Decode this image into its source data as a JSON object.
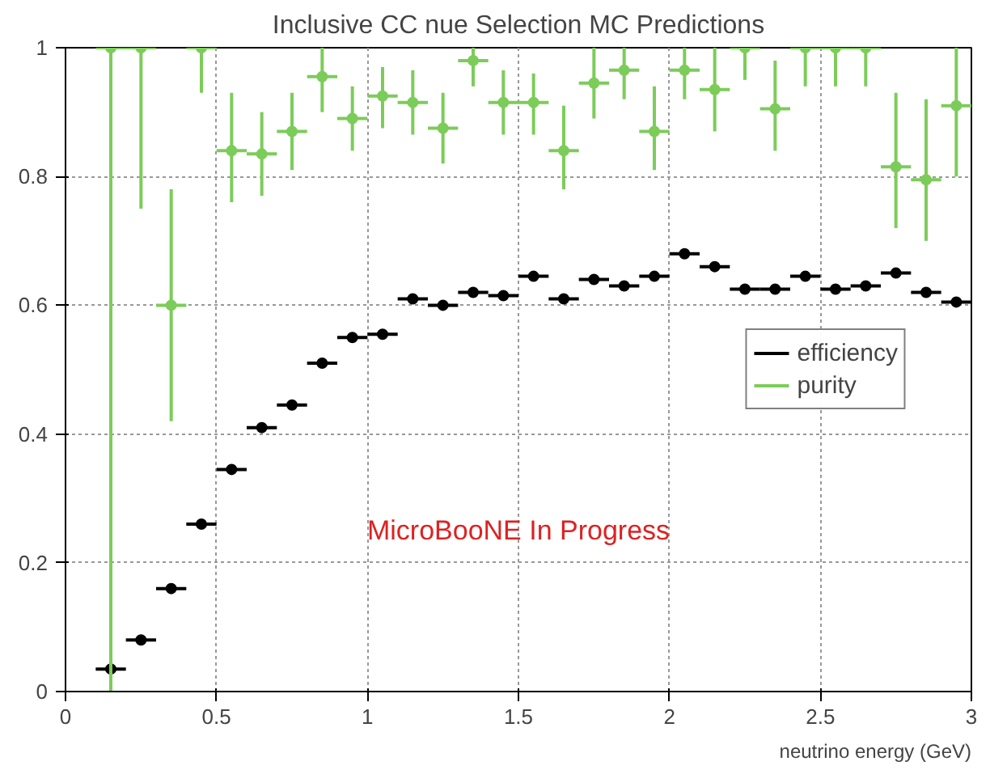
{
  "chart_data": {
    "type": "scatter",
    "title": "Inclusive CC nue Selection MC Predictions",
    "xlabel": "neutrino energy (GeV)",
    "x": [
      0.15,
      0.25,
      0.35,
      0.45,
      0.55,
      0.65,
      0.75,
      0.85,
      0.95,
      1.05,
      1.15,
      1.25,
      1.35,
      1.45,
      1.55,
      1.65,
      1.75,
      1.85,
      1.95,
      2.05,
      2.15,
      2.25,
      2.35,
      2.45,
      2.55,
      2.65,
      2.75,
      2.85,
      2.95
    ],
    "series": [
      {
        "name": "efficiency",
        "color": "#000000",
        "values": [
          0.035,
          0.08,
          0.16,
          0.26,
          0.345,
          0.41,
          0.445,
          0.51,
          0.55,
          0.555,
          0.61,
          0.6,
          0.62,
          0.615,
          0.645,
          0.61,
          0.64,
          0.63,
          0.645,
          0.68,
          0.66,
          0.625,
          0.625,
          0.645,
          0.625,
          0.63,
          0.65,
          0.62,
          0.605
        ],
        "xerrors": [
          0.05,
          0.05,
          0.05,
          0.05,
          0.05,
          0.05,
          0.05,
          0.05,
          0.05,
          0.05,
          0.05,
          0.05,
          0.05,
          0.05,
          0.05,
          0.05,
          0.05,
          0.05,
          0.05,
          0.05,
          0.05,
          0.05,
          0.05,
          0.05,
          0.05,
          0.05,
          0.05,
          0.05,
          0.05
        ],
        "errors": [
          null,
          null,
          null,
          null,
          null,
          null,
          null,
          null,
          null,
          null,
          null,
          null,
          null,
          null,
          null,
          null,
          null,
          null,
          null,
          null,
          null,
          null,
          null,
          null,
          null,
          null,
          null,
          null,
          null
        ]
      },
      {
        "name": "purity",
        "color": "#7ccc5a",
        "values": [
          1.0,
          1.0,
          0.6,
          1.0,
          0.84,
          0.835,
          0.87,
          0.955,
          0.89,
          0.925,
          0.915,
          0.875,
          0.98,
          0.915,
          0.915,
          0.84,
          0.945,
          0.965,
          0.87,
          0.965,
          0.935,
          1.0,
          0.905,
          1.0,
          1.0,
          1.0,
          0.815,
          0.795,
          0.91
        ],
        "xerrors": [
          0.05,
          0.05,
          0.05,
          0.05,
          0.05,
          0.05,
          0.05,
          0.05,
          0.05,
          0.05,
          0.05,
          0.05,
          0.05,
          0.05,
          0.05,
          0.05,
          0.05,
          0.05,
          0.05,
          0.05,
          0.05,
          0.05,
          0.05,
          0.05,
          0.05,
          0.05,
          0.05,
          0.05,
          0.05
        ],
        "errors": [
          [
            0,
            1.0
          ],
          [
            0.75,
            1.0
          ],
          [
            0.42,
            0.78
          ],
          [
            0.93,
            1.0
          ],
          [
            0.76,
            0.93
          ],
          [
            0.77,
            0.9
          ],
          [
            0.81,
            0.93
          ],
          [
            0.9,
            1.0
          ],
          [
            0.84,
            0.94
          ],
          [
            0.875,
            0.97
          ],
          [
            0.865,
            0.965
          ],
          [
            0.82,
            0.93
          ],
          [
            0.94,
            1.0
          ],
          [
            0.865,
            0.965
          ],
          [
            0.865,
            0.96
          ],
          [
            0.78,
            0.91
          ],
          [
            0.89,
            1.0
          ],
          [
            0.92,
            1.0
          ],
          [
            0.81,
            0.94
          ],
          [
            0.92,
            1.0
          ],
          [
            0.87,
            1.0
          ],
          [
            0.95,
            1.0
          ],
          [
            0.84,
            0.98
          ],
          [
            0.94,
            1.0
          ],
          [
            0.94,
            1.0
          ],
          [
            0.94,
            1.0
          ],
          [
            0.72,
            0.93
          ],
          [
            0.7,
            0.92
          ],
          [
            0.8,
            1.0
          ]
        ]
      }
    ],
    "xlim": [
      0,
      3
    ],
    "ylim": [
      0,
      1
    ],
    "xticks": [
      0,
      0.5,
      1,
      1.5,
      2,
      2.5,
      3
    ],
    "yticks": [
      0,
      0.2,
      0.4,
      0.6,
      0.8,
      1
    ],
    "grid": true,
    "legend": "right",
    "marker": "circle",
    "annotations": [
      "MicroBooNE In Progress"
    ]
  }
}
